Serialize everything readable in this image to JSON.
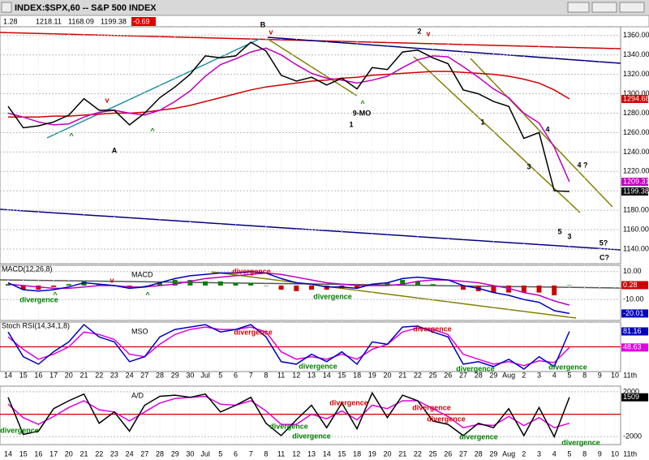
{
  "header": {
    "title": "INDEX:$SPX,60 -- S&P 500 INDEX",
    "info": [
      "1.28",
      "1218.11",
      "1168.09",
      "1199.38",
      "-0.69"
    ]
  },
  "chart_data": [
    {
      "type": "line",
      "ylim": [
        1125,
        1369
      ],
      "yticks": [
        {
          "value": 1140,
          "label": "1140.00"
        },
        {
          "value": 1160,
          "label": "1160.00"
        },
        {
          "value": 1180,
          "label": "1180.00"
        },
        {
          "value": 1200,
          "label": "1200.00"
        },
        {
          "value": 1220,
          "label": "1220.00"
        },
        {
          "value": 1240,
          "label": "1240.00"
        },
        {
          "value": 1260,
          "label": "1260.00"
        },
        {
          "value": 1280,
          "label": "1280.00"
        },
        {
          "value": 1300,
          "label": "1300.00"
        },
        {
          "value": 1320,
          "label": "1320.00"
        },
        {
          "value": 1340,
          "label": "1340.00"
        },
        {
          "value": 1360,
          "label": "1360.00"
        }
      ],
      "series": [
        {
          "name": "MA red",
          "color": "#d00000",
          "tag": true,
          "values": [
            1276,
            1276,
            1276,
            1277,
            1277,
            1278,
            1279,
            1280,
            1280,
            1281,
            1283,
            1285,
            1288,
            1292,
            1296,
            1300,
            1304,
            1307,
            1309,
            1311,
            1313,
            1314,
            1316,
            1317,
            1319,
            1320,
            1321,
            1322,
            1323,
            1323,
            1322,
            1321,
            1320,
            1318,
            1315,
            1311,
            1304,
            1294.68,
            null,
            null,
            null,
            null
          ]
        },
        {
          "name": "MA magenta",
          "color": "#c000c0",
          "tag": true,
          "values": [
            1280,
            1276,
            1271,
            1268,
            1269,
            1276,
            1281,
            1283,
            1280,
            1278,
            1283,
            1292,
            1303,
            1318,
            1330,
            1336,
            1343,
            1347,
            1340,
            1330,
            1321,
            1316,
            1314,
            1311,
            1314,
            1318,
            1327,
            1335,
            1339,
            1338,
            1328,
            1317,
            1305,
            1296,
            1280,
            1270,
            1245,
            1209.31,
            null,
            null,
            null,
            null
          ]
        },
        {
          "name": "SPX",
          "color": "#000000",
          "tag": true,
          "values": [
            1287,
            1265,
            1267,
            1271,
            1278,
            1295,
            1283,
            1283,
            1268,
            1280,
            1296,
            1307,
            1320,
            1339,
            1337,
            1339,
            1353,
            1344,
            1319,
            1313,
            1317,
            1309,
            1316,
            1305,
            1327,
            1325,
            1343,
            1345,
            1337,
            1331,
            1304,
            1300,
            1292,
            1287,
            1254,
            1260,
            1200,
            1199.38,
            null,
            null,
            null,
            null
          ]
        }
      ],
      "annotations": [
        {
          "text": "B",
          "color": "#000"
        },
        {
          "text": "v",
          "color": "#d00000"
        },
        {
          "text": "A",
          "color": "#000"
        },
        {
          "text": "2",
          "color": "#000"
        },
        {
          "text": "v",
          "color": "#d00000"
        },
        {
          "text": "1",
          "color": "#000"
        },
        {
          "text": "9-MO",
          "color": "#000"
        },
        {
          "text": "^",
          "color": "#008000"
        },
        {
          "text": "1",
          "color": "#000"
        },
        {
          "text": "3",
          "color": "#000"
        },
        {
          "text": "4",
          "color": "#000"
        },
        {
          "text": "4 ?",
          "color": "#000"
        },
        {
          "text": "5",
          "color": "#000"
        },
        {
          "text": "3",
          "color": "#000"
        },
        {
          "text": "5?",
          "color": "#000"
        },
        {
          "text": "C?",
          "color": "#000"
        },
        {
          "text": "v",
          "color": "#d00000"
        },
        {
          "text": "^",
          "color": "#008000"
        },
        {
          "text": "^",
          "color": "#008000"
        }
      ]
    },
    {
      "type": "line",
      "title": "MACD(12,26,8)",
      "label": "MACD",
      "ylim": [
        -25,
        14.5
      ],
      "yticks": [
        {
          "value": 10,
          "label": "10.00"
        },
        {
          "value": -10,
          "label": "-10.00"
        }
      ],
      "series": [
        {
          "name": "Histogram",
          "color": "#d00000",
          "type": "bar",
          "tag": true,
          "values": [
            1,
            -3,
            -3,
            -1,
            1,
            3,
            1,
            0,
            -1,
            0,
            2,
            4,
            4,
            3,
            3,
            2,
            2,
            0,
            -3,
            -4,
            -3,
            -3,
            -2,
            -2,
            1,
            2,
            4,
            3,
            1,
            0,
            -3,
            -4,
            -5,
            -5,
            -5,
            -5,
            -7,
            0.28,
            null,
            null,
            null,
            null
          ]
        },
        {
          "name": "Signal",
          "color": "#c000c0",
          "values": [
            1,
            0,
            -1,
            -2,
            -2,
            -1,
            0,
            0,
            -1,
            -1,
            0,
            1,
            3,
            5,
            6,
            7,
            8,
            9,
            8,
            6,
            4,
            2,
            1,
            0,
            0,
            0,
            1,
            3,
            4,
            4,
            3,
            2,
            0,
            -2,
            -5,
            -7,
            -11,
            -14,
            null,
            null,
            null,
            null
          ]
        },
        {
          "name": "MACD",
          "color": "#0000c0",
          "tag": true,
          "values": [
            2,
            -3,
            -4,
            -3,
            -1,
            2,
            1,
            0,
            -2,
            -1,
            2,
            5,
            7,
            8,
            9,
            9,
            10,
            9,
            5,
            2,
            1,
            -1,
            -1,
            -2,
            1,
            2,
            5,
            6,
            5,
            4,
            0,
            -2,
            -5,
            -7,
            -10,
            -12,
            -18,
            -20.01,
            null,
            null,
            null,
            null
          ]
        }
      ],
      "annotations": [
        {
          "text": "divergence",
          "color": "#008000"
        },
        {
          "text": "divergence",
          "color": "#d00000"
        },
        {
          "text": "divergence",
          "color": "#008000"
        },
        {
          "text": "v",
          "color": "#d00000"
        },
        {
          "text": "^",
          "color": "#008000"
        },
        {
          "text": "^",
          "color": "#008000"
        }
      ]
    },
    {
      "type": "line",
      "title": "Stoch RSI(14,34,1,8)",
      "label": "MSO",
      "ylim": [
        0,
        100
      ],
      "hline": 50,
      "categories": [
        "14",
        "15",
        "16",
        "17",
        "20",
        "21",
        "22",
        "23",
        "24",
        "27",
        "28",
        "29",
        "30",
        "Jul",
        "5",
        "6",
        "7",
        "8",
        "11",
        "12",
        "13",
        "14",
        "15",
        "18",
        "19",
        "20",
        "21",
        "22",
        "25",
        "26",
        "27",
        "28",
        "29",
        "Aug",
        "2",
        "3",
        "4",
        "5",
        "8",
        "9",
        "10",
        "11th"
      ],
      "series": [
        {
          "name": "Signal",
          "color": "#e000e0",
          "tag": true,
          "values": [
            70,
            45,
            25,
            35,
            50,
            80,
            75,
            65,
            35,
            30,
            55,
            75,
            85,
            90,
            85,
            85,
            90,
            80,
            40,
            25,
            30,
            25,
            35,
            25,
            45,
            55,
            80,
            88,
            85,
            75,
            35,
            25,
            15,
            20,
            12,
            22,
            18,
            48.63,
            null,
            null,
            null,
            null
          ]
        },
        {
          "name": "MSO",
          "color": "#0000c0",
          "tag": true,
          "values": [
            80,
            30,
            15,
            40,
            60,
            95,
            70,
            60,
            20,
            30,
            70,
            85,
            90,
            95,
            80,
            85,
            95,
            70,
            20,
            15,
            35,
            20,
            40,
            15,
            60,
            55,
            90,
            92,
            80,
            70,
            15,
            20,
            10,
            25,
            5,
            30,
            10,
            81.16,
            null,
            null,
            null,
            null
          ]
        }
      ],
      "annotations": [
        {
          "text": "divergence",
          "color": "#d00000"
        },
        {
          "text": "divergence",
          "color": "#008000"
        },
        {
          "text": "divergence",
          "color": "#d00000"
        },
        {
          "text": "divergence",
          "color": "#008000"
        },
        {
          "text": "divergence",
          "color": "#008000"
        }
      ]
    },
    {
      "type": "line",
      "label": "A/D",
      "ylim": [
        -2700,
        2500
      ],
      "hline": 0,
      "yticks": [
        2000,
        -2000
      ],
      "categories": [
        "14",
        "15",
        "16",
        "17",
        "20",
        "21",
        "22",
        "23",
        "24",
        "27",
        "28",
        "29",
        "30",
        "Jul",
        "5",
        "6",
        "7",
        "8",
        "11",
        "12",
        "13",
        "14",
        "15",
        "18",
        "19",
        "20",
        "21",
        "22",
        "25",
        "26",
        "27",
        "28",
        "29",
        "Aug",
        "2",
        "3",
        "4",
        "5",
        "8",
        "9",
        "10",
        "11th"
      ],
      "series": [
        {
          "name": "Signal",
          "color": "#e000e0",
          "values": [
            900,
            -300,
            -900,
            -200,
            600,
            1200,
            400,
            200,
            -600,
            200,
            1000,
            1400,
            1500,
            1600,
            900,
            800,
            1200,
            300,
            -900,
            -900,
            0,
            -400,
            300,
            -500,
            800,
            500,
            1200,
            1200,
            500,
            -200,
            -1200,
            -900,
            -1000,
            -200,
            -1000,
            -300,
            -1200,
            -800,
            null,
            null,
            null,
            null
          ]
        },
        {
          "name": "A/D",
          "color": "#000000",
          "tag": true,
          "values": [
            1500,
            -1800,
            -1500,
            500,
            1200,
            1800,
            -800,
            200,
            -1500,
            800,
            1600,
            1700,
            1500,
            1800,
            200,
            800,
            1500,
            -800,
            -1900,
            -500,
            800,
            -1200,
            1000,
            -1300,
            1900,
            -300,
            1700,
            1200,
            -600,
            -900,
            -1900,
            -800,
            -1200,
            500,
            -1900,
            600,
            -2000,
            1509,
            null,
            null,
            null,
            null
          ]
        }
      ],
      "annotations": [
        {
          "text": "divergence",
          "color": "#008000"
        },
        {
          "text": "divergence",
          "color": "#d00000"
        },
        {
          "text": "divergence",
          "color": "#008000"
        },
        {
          "text": "divergence",
          "color": "#008000"
        },
        {
          "text": "divergence",
          "color": "#d00000"
        },
        {
          "text": "divergence",
          "color": "#d00000"
        },
        {
          "text": "divergence",
          "color": "#008000"
        },
        {
          "text": "divergence",
          "color": "#008000"
        }
      ]
    }
  ]
}
